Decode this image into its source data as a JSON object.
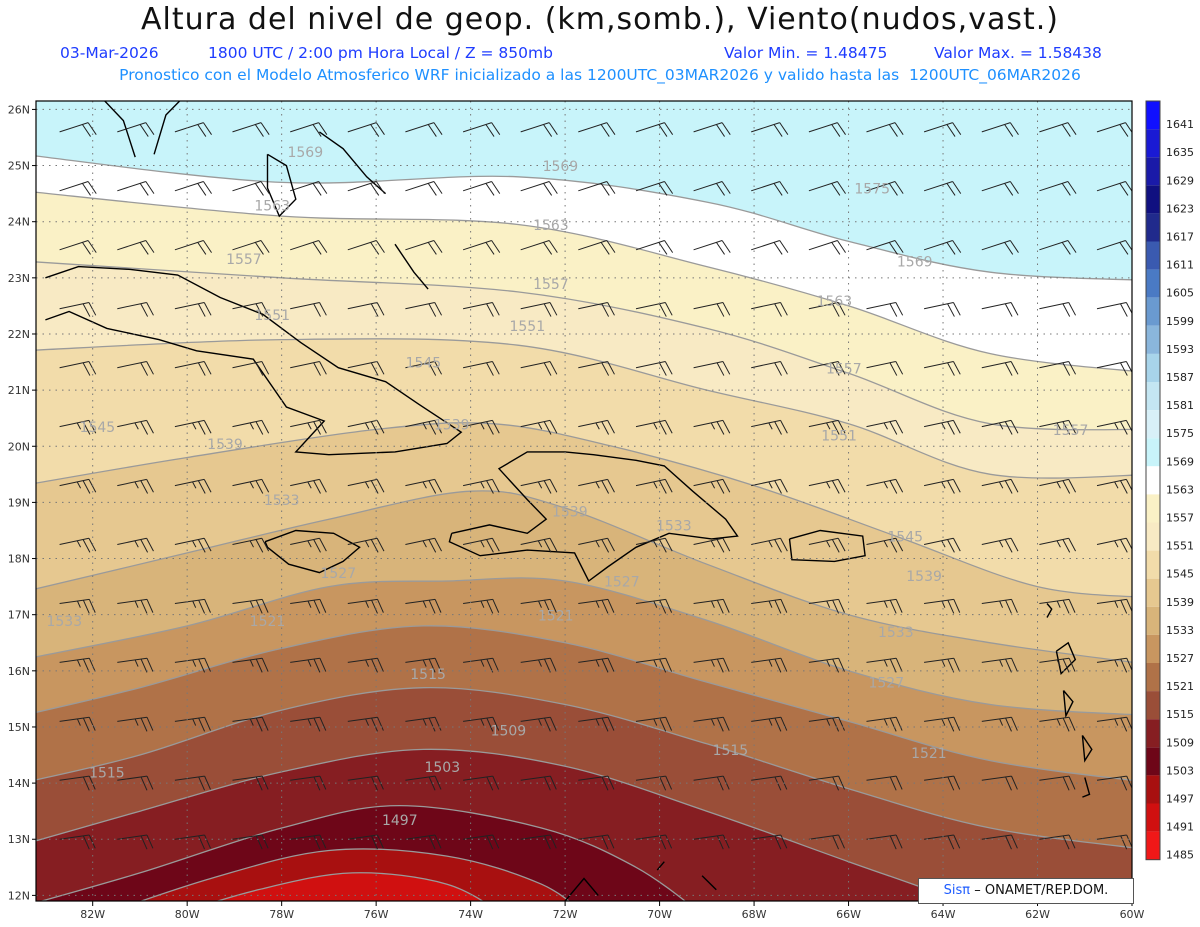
{
  "header": {
    "title": "Altura del nivel de geop. (km,somb.), Viento(nudos,vast.)",
    "date": "03-Mar-2026",
    "time": "1800 UTC / 2:00 pm Hora Local / Z = 850mb",
    "min": "Valor Min. = 1.48475",
    "max": "Valor Max. = 1.58438",
    "forecast": "Pronostico con el Modelo Atmosferico WRF inicializado a las 1200UTC_03MAR2026 y valido hasta las  1200UTC_06MAR2026"
  },
  "axes": {
    "lat_labels": [
      "26N",
      "25N",
      "24N",
      "23N",
      "22N",
      "21N",
      "20N",
      "19N",
      "18N",
      "17N",
      "16N",
      "15N",
      "14N",
      "13N",
      "12N"
    ],
    "lon_labels": [
      "82W",
      "80W",
      "78W",
      "76W",
      "74W",
      "72W",
      "70W",
      "68W",
      "66W",
      "64W",
      "62W",
      "60W"
    ]
  },
  "colorbar": {
    "labels": [
      "1641",
      "1635",
      "1629",
      "1623",
      "1617",
      "1611",
      "1605",
      "1599",
      "1593",
      "1587",
      "1581",
      "1575",
      "1569",
      "1563",
      "1557",
      "1551",
      "1545",
      "1539",
      "1533",
      "1527",
      "1521",
      "1515",
      "1509",
      "1503",
      "1497",
      "1491",
      "1485"
    ],
    "colors": [
      "#1010ff",
      "#1a1ad4",
      "#1a1aa8",
      "#101080",
      "#202a8c",
      "#3a5ab0",
      "#4a7ac4",
      "#6a9ad0",
      "#8ab6dc",
      "#a8d4ea",
      "#c4e6f2",
      "#d8f0f8",
      "#c8f4fa",
      "#ffffff",
      "#faf1c6",
      "#f8eac4",
      "#f2dcaa",
      "#e6c890",
      "#d8b47a",
      "#c89660",
      "#b07248",
      "#9a4e38",
      "#861e22",
      "#6e0618",
      "#a81010",
      "#d01010",
      "#f01818"
    ]
  },
  "contour_labels": [
    {
      "text": "1569",
      "lon": -77.5,
      "lat": 25.15
    },
    {
      "text": "1569",
      "lon": -72.1,
      "lat": 24.9
    },
    {
      "text": "1575",
      "lon": -65.5,
      "lat": 24.5
    },
    {
      "text": "1563",
      "lon": -78.2,
      "lat": 24.2
    },
    {
      "text": "1563",
      "lon": -72.3,
      "lat": 23.85
    },
    {
      "text": "1569",
      "lon": -64.6,
      "lat": 23.2
    },
    {
      "text": "1557",
      "lon": -78.8,
      "lat": 23.25
    },
    {
      "text": "1557",
      "lon": -72.3,
      "lat": 22.8
    },
    {
      "text": "1563",
      "lon": -66.3,
      "lat": 22.5
    },
    {
      "text": "1551",
      "lon": -78.2,
      "lat": 22.25
    },
    {
      "text": "1551",
      "lon": -72.8,
      "lat": 22.05
    },
    {
      "text": "1545",
      "lon": -75.0,
      "lat": 21.4
    },
    {
      "text": "1557",
      "lon": -66.1,
      "lat": 21.3
    },
    {
      "text": "1545",
      "lon": -81.9,
      "lat": 20.25
    },
    {
      "text": "1539",
      "lon": -79.2,
      "lat": 19.95
    },
    {
      "text": "1539",
      "lon": -74.4,
      "lat": 20.3
    },
    {
      "text": "1551",
      "lon": -66.2,
      "lat": 20.1
    },
    {
      "text": "1557",
      "lon": -61.3,
      "lat": 20.2
    },
    {
      "text": "1533",
      "lon": -78.0,
      "lat": 18.95
    },
    {
      "text": "1539",
      "lon": -71.9,
      "lat": 18.75
    },
    {
      "text": "1533",
      "lon": -69.7,
      "lat": 18.5
    },
    {
      "text": "1545",
      "lon": -64.8,
      "lat": 18.3
    },
    {
      "text": "1527",
      "lon": -76.8,
      "lat": 17.65
    },
    {
      "text": "1527",
      "lon": -70.8,
      "lat": 17.5
    },
    {
      "text": "1539",
      "lon": -64.4,
      "lat": 17.6
    },
    {
      "text": "1533",
      "lon": -82.6,
      "lat": 16.8
    },
    {
      "text": "1521",
      "lon": -78.3,
      "lat": 16.8
    },
    {
      "text": "1521",
      "lon": -72.2,
      "lat": 16.9
    },
    {
      "text": "1533",
      "lon": -65.0,
      "lat": 16.6
    },
    {
      "text": "1515",
      "lon": -74.9,
      "lat": 15.85
    },
    {
      "text": "1527",
      "lon": -65.2,
      "lat": 15.7
    },
    {
      "text": "1509",
      "lon": -73.2,
      "lat": 14.85
    },
    {
      "text": "1515",
      "lon": -81.7,
      "lat": 14.1
    },
    {
      "text": "1515",
      "lon": -68.5,
      "lat": 14.5
    },
    {
      "text": "1521",
      "lon": -64.3,
      "lat": 14.45
    },
    {
      "text": "1503",
      "lon": -74.6,
      "lat": 14.2
    },
    {
      "text": "1497",
      "lon": -75.5,
      "lat": 13.25
    }
  ],
  "credit": {
    "sis": "Sisπ",
    "rest": "– ONAMET/REP.DOM."
  }
}
